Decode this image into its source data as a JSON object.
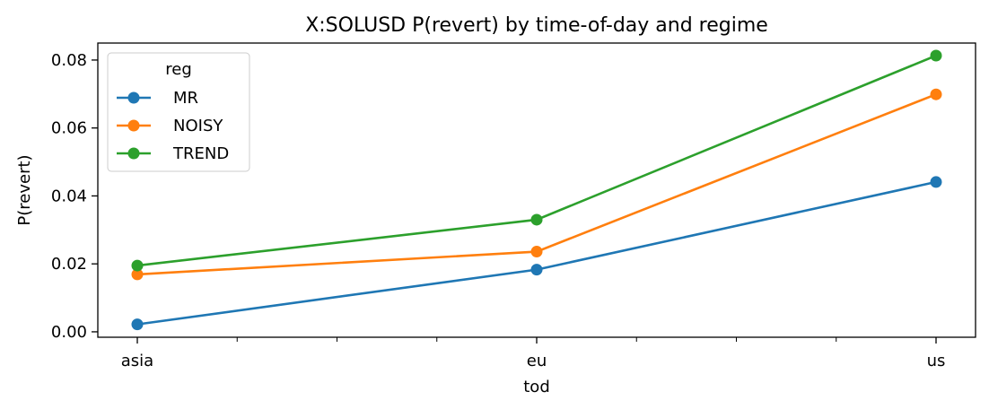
{
  "chart_data": {
    "type": "line",
    "title": "X:SOLUSD P(revert) by time-of-day and regime",
    "xlabel": "tod",
    "ylabel": "P(revert)",
    "categories": [
      "asia",
      "eu",
      "us"
    ],
    "yticks": [
      "0.00",
      "0.02",
      "0.04",
      "0.06",
      "0.08"
    ],
    "ylim": [
      -0.0016,
      0.085
    ],
    "legend_title": "reg",
    "legend_position": "top-left",
    "grid": false,
    "series": [
      {
        "name": "MR",
        "color": "#1f77b4",
        "values": [
          0.0022,
          0.0183,
          0.0441
        ]
      },
      {
        "name": "NOISY",
        "color": "#ff7f0e",
        "values": [
          0.0169,
          0.0236,
          0.0699
        ]
      },
      {
        "name": "TREND",
        "color": "#2ca02c",
        "values": [
          0.0195,
          0.033,
          0.0813
        ]
      }
    ]
  }
}
